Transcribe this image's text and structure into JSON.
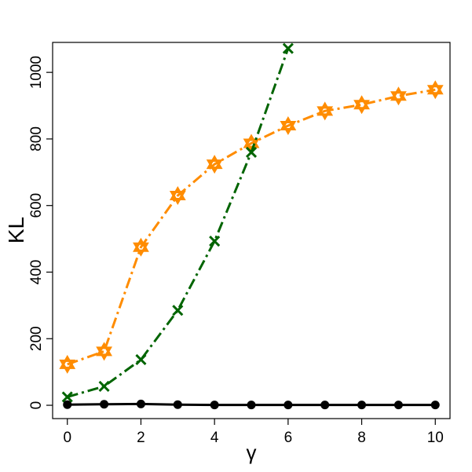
{
  "chart_data": {
    "type": "line",
    "title": "",
    "xlabel": "γ",
    "ylabel": "KL",
    "xlim": [
      -0.4,
      10.4
    ],
    "ylim": [
      -40,
      1090
    ],
    "x_ticks": [
      0,
      2,
      4,
      6,
      8,
      10
    ],
    "y_ticks": [
      0,
      200,
      400,
      600,
      800,
      1000
    ],
    "grid": false,
    "legend": "none",
    "series": [
      {
        "color": "#ff8c00",
        "line_style": "dash-dot",
        "marker": "star-of-david",
        "x": [
          0,
          1,
          2,
          3,
          4,
          5,
          6,
          7,
          8,
          9,
          10
        ],
        "values": [
          123,
          162,
          475,
          630,
          724,
          787,
          840,
          884,
          903,
          929,
          948
        ]
      },
      {
        "color": "#006400",
        "line_style": "dash-dot",
        "marker": "x",
        "x": [
          0,
          1,
          2,
          3,
          4,
          5,
          6
        ],
        "values": [
          25,
          57,
          137,
          285,
          493,
          760,
          1072
        ]
      },
      {
        "color": "#000000",
        "line_style": "solid",
        "marker": "filled-circle",
        "x": [
          0,
          1,
          2,
          3,
          4,
          5,
          6,
          7,
          8,
          9,
          10
        ],
        "values": [
          2,
          3,
          4,
          2,
          1,
          1,
          1,
          1,
          1,
          1,
          1
        ]
      }
    ]
  }
}
